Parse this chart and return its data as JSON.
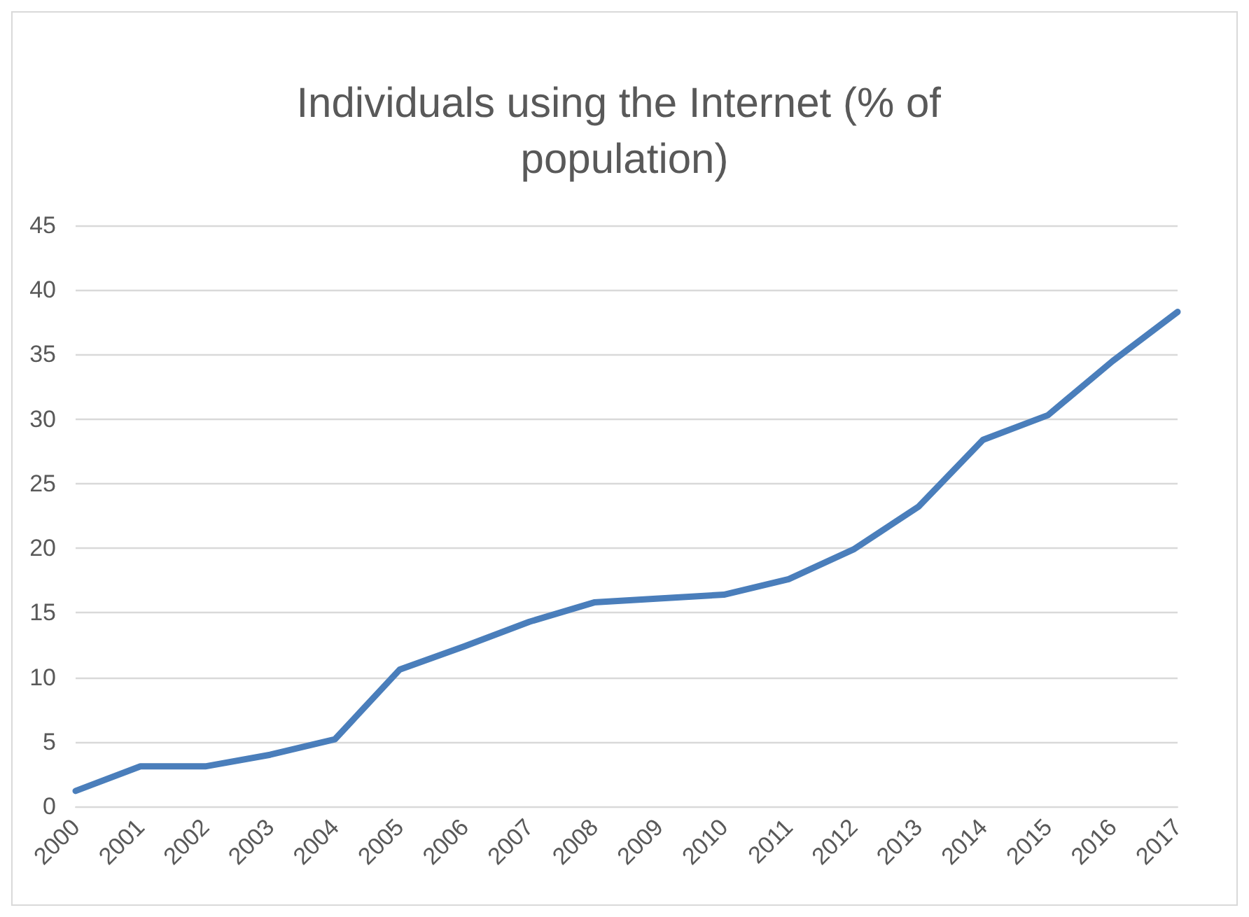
{
  "chart_data": {
    "type": "line",
    "title": "Individuals using the Internet (% of population)",
    "categories": [
      "2000",
      "2001",
      "2002",
      "2003",
      "2004",
      "2005",
      "2006",
      "2007",
      "2008",
      "2009",
      "2010",
      "2011",
      "2012",
      "2013",
      "2014",
      "2015",
      "2016",
      "2017"
    ],
    "series": [
      {
        "color": "#4a7ebb",
        "values": [
          1.2,
          3.1,
          3.1,
          4.0,
          5.2,
          10.6,
          12.4,
          14.3,
          15.8,
          16.1,
          16.4,
          17.6,
          19.9,
          23.2,
          28.4,
          30.3,
          34.5,
          38.3
        ]
      }
    ],
    "ylim": [
      0,
      45
    ],
    "yticks": [
      0,
      5,
      10,
      15,
      20,
      25,
      30,
      35,
      40,
      45
    ],
    "grid": "y",
    "marker": "none",
    "line_style": "solid"
  }
}
